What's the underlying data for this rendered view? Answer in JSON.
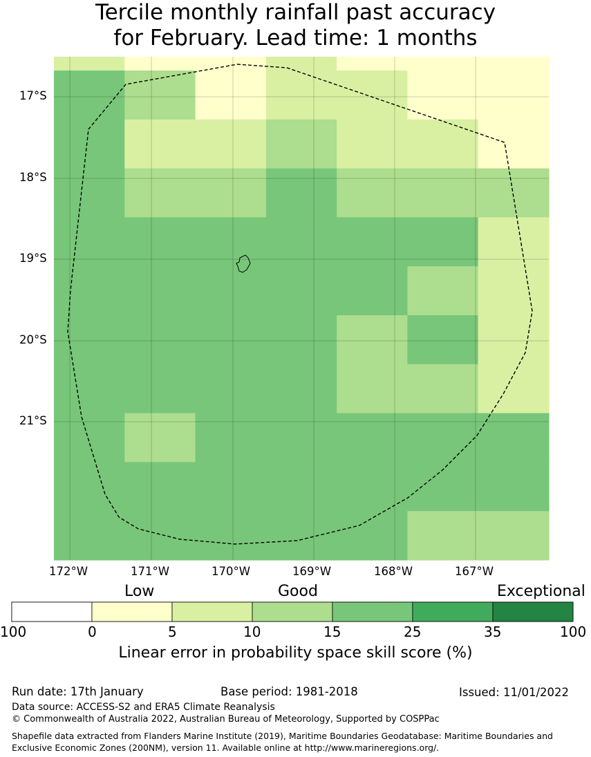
{
  "title_line1": "Tercile monthly rainfall past accuracy",
  "title_line2": "for February. Lead time: 1 months",
  "map": {
    "lon_labels": [
      "172°W",
      "171°W",
      "170°W",
      "169°W",
      "168°W",
      "167°W"
    ],
    "lat_labels": [
      "17°S",
      "18°S",
      "19°S",
      "20°S",
      "21°S"
    ],
    "grid_columns": 7,
    "grid_rows": 11,
    "grid_categories": [
      [
        2,
        1,
        1,
        2,
        1,
        1,
        1
      ],
      [
        4,
        3,
        1,
        2,
        2,
        1,
        1
      ],
      [
        4,
        2,
        2,
        3,
        2,
        2,
        1
      ],
      [
        4,
        3,
        3,
        4,
        3,
        3,
        3
      ],
      [
        4,
        4,
        4,
        4,
        4,
        4,
        2
      ],
      [
        4,
        4,
        4,
        4,
        4,
        3,
        2
      ],
      [
        4,
        4,
        4,
        4,
        3,
        4,
        2
      ],
      [
        4,
        4,
        4,
        4,
        3,
        3,
        2
      ],
      [
        4,
        3,
        4,
        4,
        4,
        4,
        4
      ],
      [
        4,
        4,
        4,
        4,
        4,
        4,
        4
      ],
      [
        4,
        4,
        4,
        4,
        4,
        3,
        3
      ]
    ],
    "eez_boundary_style": "dashed"
  },
  "legend": {
    "categories": [
      "Low",
      "Good",
      "Exceptional"
    ],
    "ticks": [
      "100",
      "0",
      "5",
      "10",
      "15",
      "25",
      "35",
      "100"
    ],
    "colors": [
      "#ffffff",
      "#ffffcc",
      "#d9f0a3",
      "#addd8e",
      "#78c679",
      "#41ab5d",
      "#238443"
    ],
    "axis_label": "Linear error in probability space skill score (%)"
  },
  "footer": {
    "run_date": "Run date: 17th January",
    "base_period": "Base period: 1981-2018",
    "issued": "Issued: 11/01/2022",
    "data_source": "Data source: ACCESS-S2 and ERA5 Climate Reanalysis",
    "copyright": "© Commonwealth of Australia 2022, Australian Bureau of Meteorology, Supported by COSPPac",
    "shapefile": "Shapefile data extracted from Flanders Marine Institute (2019), Maritime Boundaries Geodatabase: Maritime Boundaries and Exclusive Economic Zones (200NM), version 11. Available online at http://www.marineregions.org/."
  }
}
